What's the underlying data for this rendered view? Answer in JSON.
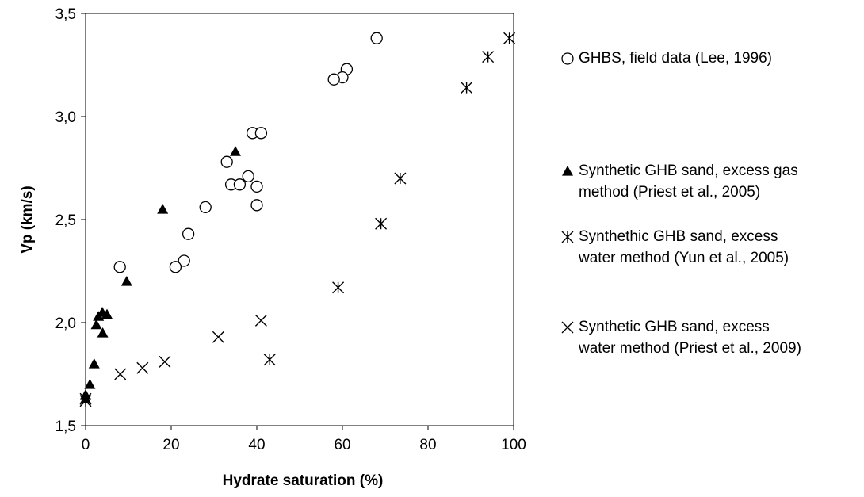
{
  "chart_data": {
    "type": "scatter",
    "xlabel": "Hydrate saturation (%)",
    "ylabel": "Vp (km/s)",
    "xlim": [
      0,
      100
    ],
    "xticks": [
      0,
      20,
      40,
      60,
      80,
      100
    ],
    "ylim": [
      1.5,
      3.5
    ],
    "yticks": [
      {
        "value": 1.5,
        "label": "1,5"
      },
      {
        "value": 2.0,
        "label": "2,0"
      },
      {
        "value": 2.5,
        "label": "2,5"
      },
      {
        "value": 3.0,
        "label": "3,0"
      },
      {
        "value": 3.5,
        "label": "3,5"
      }
    ],
    "series": [
      {
        "name": "GHBS, field data (Lee, 1996)",
        "color": "#000000",
        "marker": "circle",
        "x": [
          68,
          61,
          60,
          58,
          39,
          41,
          33,
          34,
          36,
          38,
          40,
          40,
          28,
          24,
          23,
          21,
          8
        ],
        "values": [
          3.38,
          3.23,
          3.19,
          3.18,
          2.92,
          2.92,
          2.78,
          2.67,
          2.67,
          2.71,
          2.66,
          2.57,
          2.56,
          2.43,
          2.3,
          2.27,
          2.27
        ]
      },
      {
        "name": "Synthetic GHB sand, excess gas method (Priest et al., 2005)",
        "color": "#000000",
        "marker": "triangle",
        "x": [
          35,
          18,
          9.6,
          3.9,
          5,
          3,
          2.5,
          4,
          2,
          1,
          0,
          0
        ],
        "values": [
          2.83,
          2.55,
          2.2,
          2.05,
          2.04,
          2.03,
          1.99,
          1.95,
          1.8,
          1.7,
          1.65,
          1.63
        ]
      },
      {
        "name": "Synthethic GHB sand, excess water method (Yun et al., 2005)",
        "color": "#000000",
        "marker": "asterisk",
        "x": [
          99,
          94,
          89,
          73.5,
          69,
          59,
          43,
          0
        ],
        "values": [
          3.38,
          3.29,
          3.14,
          2.7,
          2.48,
          2.17,
          1.82,
          1.62
        ]
      },
      {
        "name": "Synthetic GHB sand, excess water method (Priest et al., 2009)",
        "color": "#000000",
        "marker": "cross",
        "x": [
          41,
          31,
          18.5,
          13.3,
          8.1,
          0
        ],
        "values": [
          2.01,
          1.93,
          1.81,
          1.78,
          1.75,
          1.63
        ]
      }
    ]
  }
}
